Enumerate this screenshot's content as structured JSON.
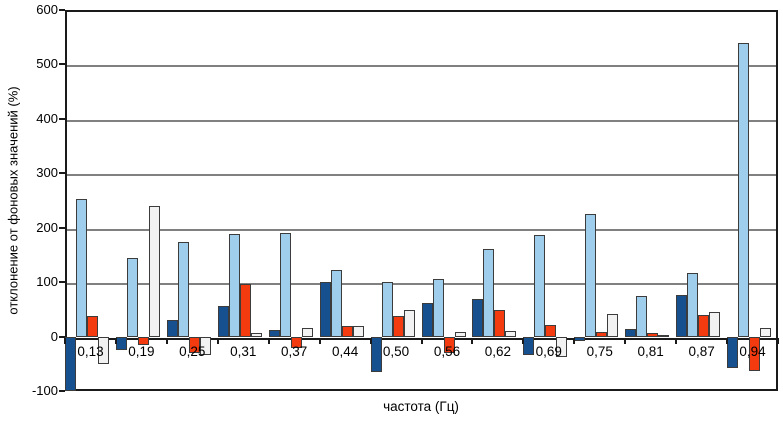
{
  "chart_data": {
    "type": "bar",
    "title": "",
    "xlabel": "частота (Гц)",
    "ylabel": "отклонение от фоновых значений (%)",
    "ylim": [
      -100,
      600
    ],
    "yticks": [
      600,
      500,
      400,
      300,
      200,
      100,
      0,
      -100
    ],
    "grid": true,
    "legend": false,
    "categories": [
      "0,13",
      "0,19",
      "0,25",
      "0,31",
      "0,37",
      "0,44",
      "0,50",
      "0,56",
      "0,62",
      "0,69",
      "0,75",
      "0,81",
      "0,87",
      "0,94"
    ],
    "series": [
      {
        "name": "series-1-dark-blue",
        "color": "#17508f",
        "values": [
          -100,
          -25,
          30,
          56,
          12,
          101,
          -66,
          61,
          69,
          -33,
          -8,
          13,
          76,
          -58
        ]
      },
      {
        "name": "series-2-light-blue",
        "color": "#9fcdec",
        "values": [
          253,
          145,
          173,
          188,
          190,
          122,
          100,
          105,
          160,
          186,
          226,
          75,
          116,
          540
        ]
      },
      {
        "name": "series-3-orange-red",
        "color": "#f43b10",
        "values": [
          37,
          -15,
          -30,
          97,
          -21,
          20,
          38,
          -30,
          48,
          22,
          8,
          7,
          40,
          -64
        ]
      },
      {
        "name": "series-4-white-gray",
        "color": "#f2f2f2",
        "values": [
          -50,
          240,
          -34,
          6,
          16,
          20,
          48,
          8,
          10,
          -37,
          42,
          2,
          46,
          15
        ]
      }
    ],
    "colors": {
      "bar_border": "#3c3c3c",
      "gridline": "#808080",
      "axis": "#1a1a1a",
      "background": "#ffffff",
      "text": "#000000"
    }
  }
}
